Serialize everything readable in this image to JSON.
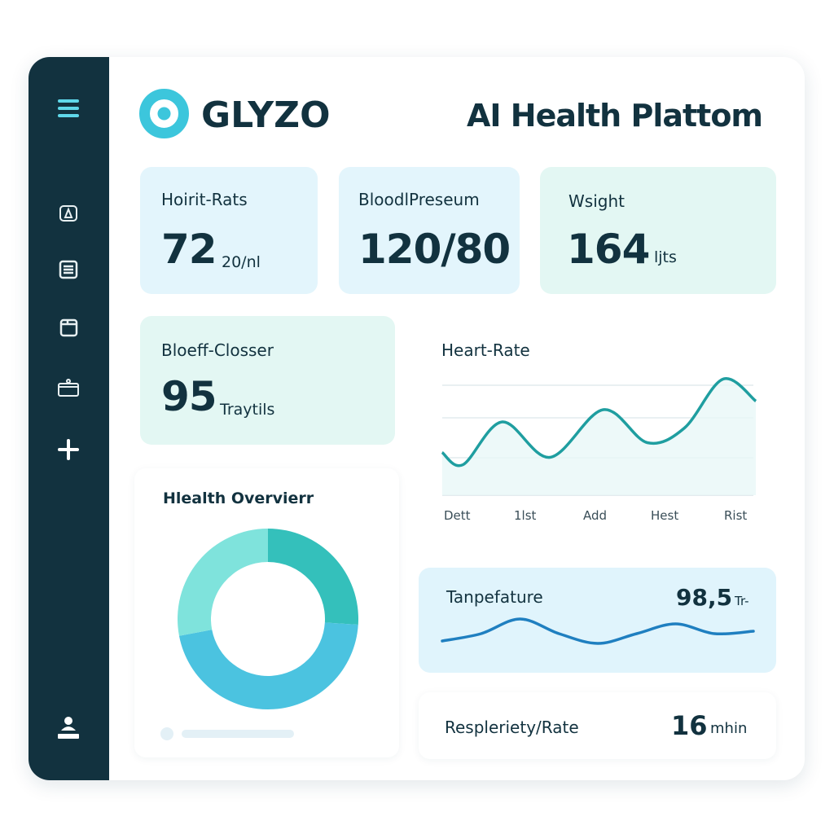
{
  "app": {
    "logo_text": "GLYZO",
    "title": "AI Health Plattom",
    "accent": "#3cc6dc",
    "sidebar_bg": "#12323f"
  },
  "sidebar": {
    "items": [
      {
        "icon": "menu-icon"
      },
      {
        "icon": "bell-icon"
      },
      {
        "icon": "list-icon"
      },
      {
        "icon": "calendar-icon"
      },
      {
        "icon": "briefcase-icon"
      },
      {
        "icon": "plus-icon"
      },
      {
        "icon": "user-icon"
      }
    ]
  },
  "metrics": {
    "heart_rate": {
      "label": "Hoirit-Rats",
      "value": "72",
      "unit": "20/nl"
    },
    "blood_pressure": {
      "label": "BloodlPreseum",
      "value": "120/80"
    },
    "weight": {
      "label": "Wsight",
      "value": "164",
      "unit": "ljts"
    },
    "blood_oxygen": {
      "label": "Bloeff-Closser",
      "value": "95",
      "unit": "Traytils"
    },
    "temperature": {
      "label": "Tanpefature",
      "value": "98,5",
      "unit": "Tr-"
    },
    "respiratory": {
      "label": "Respleriety/Rate",
      "value": "16",
      "unit": "mhin"
    }
  },
  "overview": {
    "title": "Hlealth Overvierr"
  },
  "chart_data": [
    {
      "type": "area",
      "title": "Heart-Rate",
      "categories": [
        "Dett",
        "1lst",
        "Add",
        "Hest",
        "Rist"
      ],
      "x": [
        -0.2,
        0.1,
        0.66,
        1.34,
        2.1,
        2.73,
        3.26,
        3.81,
        4.28
      ],
      "values": [
        35,
        25,
        60,
        31,
        70,
        43,
        55,
        95,
        77
      ],
      "ylim": [
        0,
        100
      ],
      "grid": true,
      "color": "#1f9ea0"
    },
    {
      "type": "pie",
      "title": "Hlealth Overvierr",
      "values": [
        26,
        46,
        28
      ],
      "colors": [
        "#34c0bb",
        "#4bc3e0",
        "#7fe3dc"
      ],
      "donut": true
    },
    {
      "type": "line",
      "title": "Tanpefature",
      "values": [
        0,
        3,
        9,
        3,
        -1,
        3,
        7,
        3,
        4
      ],
      "color": "#1f7fc0"
    }
  ]
}
